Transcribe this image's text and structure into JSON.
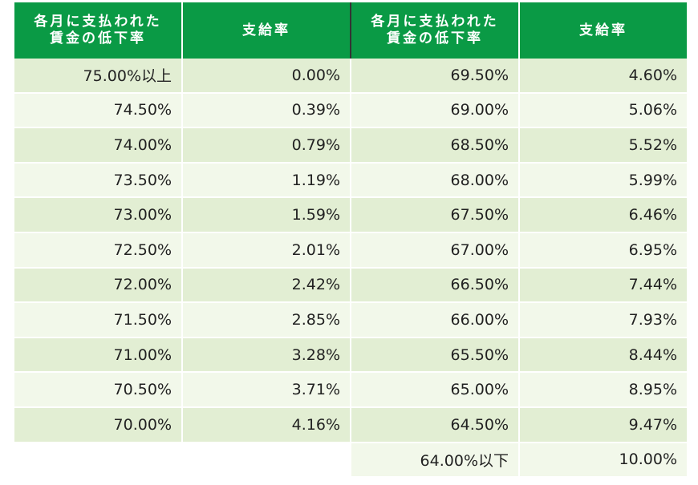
{
  "table": {
    "headers": [
      [
        "各月に支払われた",
        "賃金の低下率"
      ],
      [
        "支給率"
      ],
      [
        "各月に支払われた",
        "賃金の低下率"
      ],
      [
        "支給率"
      ]
    ],
    "rows": [
      [
        "75.00%以上",
        "0.00%",
        "69.50%",
        "4.60%"
      ],
      [
        "74.50%",
        "0.39%",
        "69.00%",
        "5.06%"
      ],
      [
        "74.00%",
        "0.79%",
        "68.50%",
        "5.52%"
      ],
      [
        "73.50%",
        "1.19%",
        "68.00%",
        "5.99%"
      ],
      [
        "73.00%",
        "1.59%",
        "67.50%",
        "6.46%"
      ],
      [
        "72.50%",
        "2.01%",
        "67.00%",
        "6.95%"
      ],
      [
        "72.00%",
        "2.42%",
        "66.50%",
        "7.44%"
      ],
      [
        "71.50%",
        "2.85%",
        "66.00%",
        "7.93%"
      ],
      [
        "71.00%",
        "3.28%",
        "65.50%",
        "8.44%"
      ],
      [
        "70.50%",
        "3.71%",
        "65.00%",
        "8.95%"
      ],
      [
        "70.00%",
        "4.16%",
        "64.50%",
        "9.47%"
      ]
    ],
    "last_row": [
      "64.00%以下",
      "10.00%"
    ]
  }
}
